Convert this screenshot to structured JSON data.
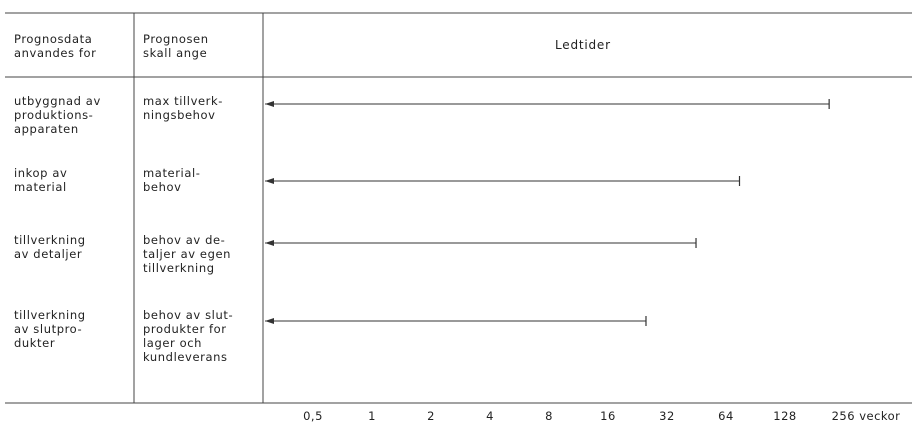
{
  "header": {
    "col1": "Prognosdata\nanvandes for",
    "col2": "Prognosen\nskall ange",
    "col3": "Ledtider"
  },
  "rows": [
    {
      "use": "utbyggnad av\nproduktions-\napparaten",
      "indicates": "max tillverk-\nningsbehov",
      "lead_weeks": 215
    },
    {
      "use": "inkop av\nmaterial",
      "indicates": "material-\nbehov",
      "lead_weeks": 75
    },
    {
      "use": "tillverkning\nav detaljer",
      "indicates": "behov av de-\ntaljer av egen\ntillverkning",
      "lead_weeks": 45
    },
    {
      "use": "tillverkning\nav slutpro-\ndukter",
      "indicates": "behov av slut-\nprodukter for\nlager och\nkundleverans",
      "lead_weeks": 25
    }
  ],
  "axis": {
    "ticks": [
      "0,5",
      "1",
      "2",
      "4",
      "8",
      "16",
      "32",
      "64",
      "128",
      "256 veckor"
    ],
    "tick_values": [
      0.5,
      1,
      2,
      4,
      8,
      16,
      32,
      64,
      128,
      256
    ]
  }
}
